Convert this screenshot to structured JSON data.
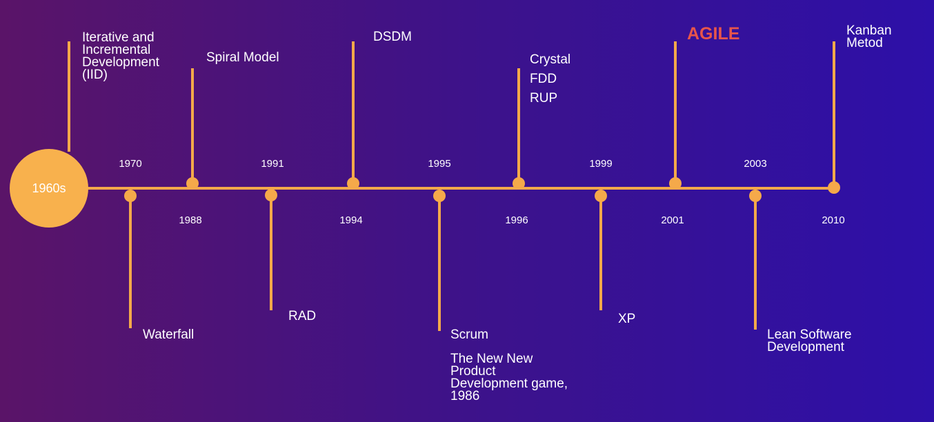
{
  "start": "1960s",
  "years": {
    "y1970": "1970",
    "y1988": "1988",
    "y1991": "1991",
    "y1994": "1994",
    "y1995": "1995",
    "y1996": "1996",
    "y1999": "1999",
    "y2001": "2001",
    "y2003": "2003",
    "y2010": "2010"
  },
  "events": {
    "iid": [
      "Iterative and",
      "Incremental",
      "Development",
      "(IID)"
    ],
    "spiral": "Spiral Model",
    "dsdm": "DSDM",
    "crystal": [
      "Crystal",
      "FDD",
      "RUP"
    ],
    "agile": "AGILE",
    "kanban": [
      "Kanban",
      "Metod"
    ],
    "waterfall": "Waterfall",
    "rad": "RAD",
    "scrum": "Scrum",
    "newgame": [
      "The New New",
      "Product",
      "Development game,",
      "1986"
    ],
    "xp": "XP",
    "lean": [
      "Lean Software",
      "Development"
    ]
  },
  "colors": {
    "accent": "#f5a94a",
    "agile": "#e8554a",
    "background_start": "#5a1468",
    "background_end": "#2d10a8"
  }
}
